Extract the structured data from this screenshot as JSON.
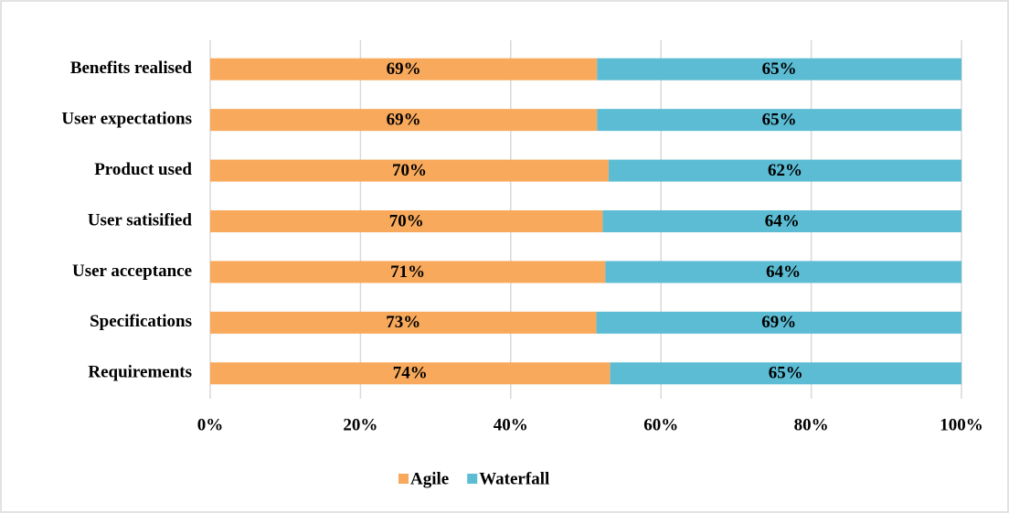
{
  "chart_data": {
    "type": "bar",
    "orientation": "horizontal",
    "stacked": "percent",
    "categories": [
      "Benefits realised",
      "User expectations",
      "Product used",
      "User satisified",
      "User acceptance",
      "Specifications",
      "Requirements"
    ],
    "series": [
      {
        "name": "Agile",
        "color": "#f8a95b",
        "values": [
          69,
          69,
          70,
          70,
          71,
          73,
          74
        ],
        "value_labels": [
          "69%",
          "69%",
          "70%",
          "70%",
          "71%",
          "73%",
          "74%"
        ]
      },
      {
        "name": "Waterfall",
        "color": "#5bbcd4",
        "values": [
          65,
          65,
          62,
          64,
          64,
          69,
          65
        ],
        "value_labels": [
          "65%",
          "65%",
          "62%",
          "64%",
          "64%",
          "69%",
          "65%"
        ]
      }
    ],
    "xlim": [
      0,
      100
    ],
    "xticks": [
      {
        "value": 0,
        "label": "0%"
      },
      {
        "value": 20,
        "label": "20%"
      },
      {
        "value": 40,
        "label": "40%"
      },
      {
        "value": 60,
        "label": "60%"
      },
      {
        "value": 80,
        "label": "80%"
      },
      {
        "value": 100,
        "label": "100%"
      }
    ],
    "grid": true,
    "legend": "bottom"
  }
}
